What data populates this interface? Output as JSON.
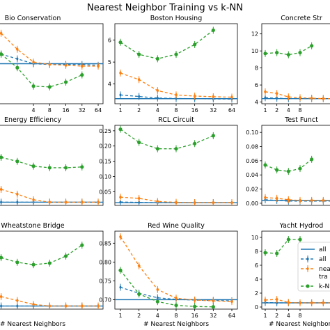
{
  "figure": {
    "title": "Nearest Neighbor Training vs k-NN",
    "xlabel": "# Nearest Neighbors"
  },
  "colors": {
    "all_line": "#1f77b4",
    "all_err": "#1f77b4",
    "nearest": "#ff7f0e",
    "knn": "#2ca02c"
  },
  "legend": {
    "placement": "lower-right of last panel",
    "entries": [
      "all",
      "all",
      "nea",
      "tra",
      "k-N"
    ]
  },
  "chart_data": [
    {
      "type": "line",
      "title": "Bio Conservation",
      "x": [
        1,
        2,
        4,
        8,
        16,
        32,
        64
      ],
      "xticks": [
        "4",
        "8",
        "16",
        "32",
        "64"
      ],
      "xlim_log2": [
        -0.5,
        6.3
      ],
      "yticks": [],
      "ylim": [
        0,
        1
      ],
      "baseline": 0.5,
      "series": [
        {
          "name": "all",
          "values": [
            0.62,
            0.56,
            0.5,
            0.49,
            0.49,
            0.49,
            0.48
          ]
        },
        {
          "name": "nearest",
          "values": [
            0.88,
            0.68,
            0.52,
            0.49,
            0.48,
            0.47,
            0.47
          ]
        },
        {
          "name": "k-NN",
          "values": [
            0.62,
            0.45,
            0.22,
            0.21,
            0.27,
            0.36,
            null
          ]
        }
      ]
    },
    {
      "type": "line",
      "title": "Boston Housing",
      "x": [
        1,
        2,
        4,
        8,
        16,
        32,
        64
      ],
      "xticks": [
        "1",
        "2",
        "4",
        "8",
        "16",
        "32",
        "64"
      ],
      "xlim_log2": [
        -0.3,
        6.3
      ],
      "yticks": [
        4,
        5,
        6
      ],
      "ylim": [
        3.1,
        6.75
      ],
      "baseline": 3.33,
      "series": [
        {
          "name": "all",
          "values": [
            3.5,
            3.43,
            3.36,
            3.34,
            3.33,
            3.32,
            3.31
          ]
        },
        {
          "name": "nearest",
          "values": [
            4.5,
            4.2,
            3.7,
            3.5,
            3.45,
            3.42,
            3.4
          ]
        },
        {
          "name": "k-NN",
          "values": [
            5.9,
            5.35,
            5.15,
            5.35,
            5.8,
            6.45,
            null
          ]
        }
      ]
    },
    {
      "type": "line",
      "title": "Concrete Str",
      "x": [
        1,
        2,
        4,
        8,
        16,
        32,
        64
      ],
      "xticks": [
        "1",
        "2",
        "4",
        "8"
      ],
      "xlim_log2": [
        -0.3,
        6.3
      ],
      "yticks": [
        4,
        6,
        8,
        10,
        12
      ],
      "ylim": [
        3.8,
        13.2
      ],
      "baseline": 4.4,
      "series": [
        {
          "name": "all",
          "values": [
            4.5,
            4.45,
            4.4,
            4.4,
            4.4,
            4.4,
            4.4
          ]
        },
        {
          "name": "nearest",
          "values": [
            5.2,
            5.0,
            4.6,
            4.5,
            4.45,
            4.4,
            4.4
          ]
        },
        {
          "name": "k-NN",
          "values": [
            9.7,
            9.8,
            9.55,
            9.8,
            10.6,
            null,
            null
          ]
        }
      ]
    },
    {
      "type": "line",
      "title": "Energy Efficiency",
      "x": [
        1,
        2,
        4,
        8,
        16,
        32,
        64
      ],
      "xticks": [],
      "xlim_log2": [
        -0.5,
        6.3
      ],
      "yticks": [],
      "ylim": [
        0,
        1
      ],
      "baseline": 0.04,
      "series": [
        {
          "name": "all",
          "values": [
            0.04,
            0.04,
            0.04,
            0.04,
            0.04,
            0.04,
            0.04
          ]
        },
        {
          "name": "nearest",
          "values": [
            0.2,
            0.14,
            0.07,
            0.04,
            0.04,
            0.04,
            0.04
          ]
        },
        {
          "name": "k-NN",
          "values": [
            0.6,
            0.55,
            0.49,
            0.47,
            0.47,
            0.48,
            null
          ]
        }
      ]
    },
    {
      "type": "line",
      "title": "RCL Circuit",
      "x": [
        1,
        2,
        4,
        8,
        16,
        32,
        64
      ],
      "xticks": [],
      "xlim_log2": [
        -0.3,
        6.3
      ],
      "yticks": [
        0.05,
        0.1,
        0.15,
        0.2,
        0.25
      ],
      "ylim": [
        0.005,
        0.268
      ],
      "baseline": 0.014,
      "series": [
        {
          "name": "all",
          "values": [
            0.016,
            0.015,
            0.014,
            0.014,
            0.014,
            0.014,
            0.014
          ]
        },
        {
          "name": "nearest",
          "values": [
            0.032,
            0.028,
            0.018,
            0.015,
            0.014,
            0.014,
            0.014
          ]
        },
        {
          "name": "k-NN",
          "values": [
            0.255,
            0.212,
            0.191,
            0.191,
            0.208,
            0.234,
            null
          ]
        }
      ]
    },
    {
      "type": "line",
      "title": "Test Funct",
      "x": [
        1,
        2,
        4,
        8,
        16,
        32,
        64
      ],
      "xticks": [],
      "xlim_log2": [
        -0.3,
        6.3
      ],
      "yticks": [
        0.0,
        0.02,
        0.04,
        0.06,
        0.08,
        0.1
      ],
      "ylim": [
        -0.003,
        0.11
      ],
      "baseline": 0.004,
      "series": [
        {
          "name": "all",
          "values": [
            0.005,
            0.004,
            0.003,
            0.003,
            0.003,
            0.003,
            0.003
          ]
        },
        {
          "name": "nearest",
          "values": [
            0.008,
            0.007,
            0.005,
            0.004,
            0.004,
            0.004,
            0.004
          ]
        },
        {
          "name": "k-NN",
          "values": [
            0.054,
            0.047,
            0.045,
            0.049,
            0.062,
            null,
            null
          ]
        }
      ]
    },
    {
      "type": "line",
      "title": "Wheatstone Bridge",
      "x": [
        1,
        2,
        4,
        8,
        16,
        32,
        64
      ],
      "xticks": [],
      "xlim_log2": [
        -0.5,
        6.3
      ],
      "yticks": [],
      "ylim": [
        0,
        1
      ],
      "baseline": 0.04,
      "series": [
        {
          "name": "all",
          "values": [
            0.04,
            0.04,
            0.04,
            0.04,
            0.04,
            0.04,
            0.04
          ]
        },
        {
          "name": "nearest",
          "values": [
            0.16,
            0.11,
            0.06,
            0.04,
            0.04,
            0.04,
            0.04
          ]
        },
        {
          "name": "k-NN",
          "values": [
            0.66,
            0.6,
            0.57,
            0.59,
            0.68,
            0.82,
            null
          ]
        }
      ]
    },
    {
      "type": "line",
      "title": "Red Wine Quality",
      "x": [
        1,
        2,
        4,
        8,
        16,
        32,
        64
      ],
      "xticks": [
        "1",
        "2",
        "4",
        "8",
        "16",
        "32",
        "64"
      ],
      "xlim_log2": [
        -0.3,
        6.3
      ],
      "yticks": [
        0.7,
        0.75,
        0.8,
        0.85
      ],
      "ylim": [
        0.675,
        0.882
      ],
      "baseline": 0.7,
      "series": [
        {
          "name": "all",
          "values": [
            0.733,
            0.717,
            0.705,
            0.701,
            0.699,
            0.698,
            0.697
          ]
        },
        {
          "name": "nearest",
          "values": [
            0.867,
            0.79,
            0.727,
            0.704,
            0.699,
            0.697,
            0.695
          ]
        },
        {
          "name": "k-NN",
          "values": [
            0.778,
            0.715,
            0.695,
            0.685,
            0.682,
            0.681,
            null
          ]
        }
      ]
    },
    {
      "type": "line",
      "title": "Yacht Hydrod",
      "x": [
        1,
        2,
        4,
        8,
        16,
        32,
        64
      ],
      "xticks": [
        "1",
        "2",
        "4",
        "8"
      ],
      "xlim_log2": [
        -0.3,
        6.3
      ],
      "yticks": [
        0,
        2,
        4,
        6,
        8,
        10
      ],
      "ylim": [
        -0.3,
        10.9
      ],
      "baseline": 0.6,
      "series": [
        {
          "name": "all",
          "values": [
            0.65,
            0.6,
            0.6,
            0.6,
            0.6,
            0.6,
            0.6
          ]
        },
        {
          "name": "nearest",
          "values": [
            1.0,
            1.1,
            0.65,
            0.6,
            0.6,
            0.6,
            0.6
          ]
        },
        {
          "name": "k-NN",
          "values": [
            7.8,
            7.7,
            9.7,
            9.7,
            null,
            null,
            null
          ]
        }
      ]
    }
  ]
}
